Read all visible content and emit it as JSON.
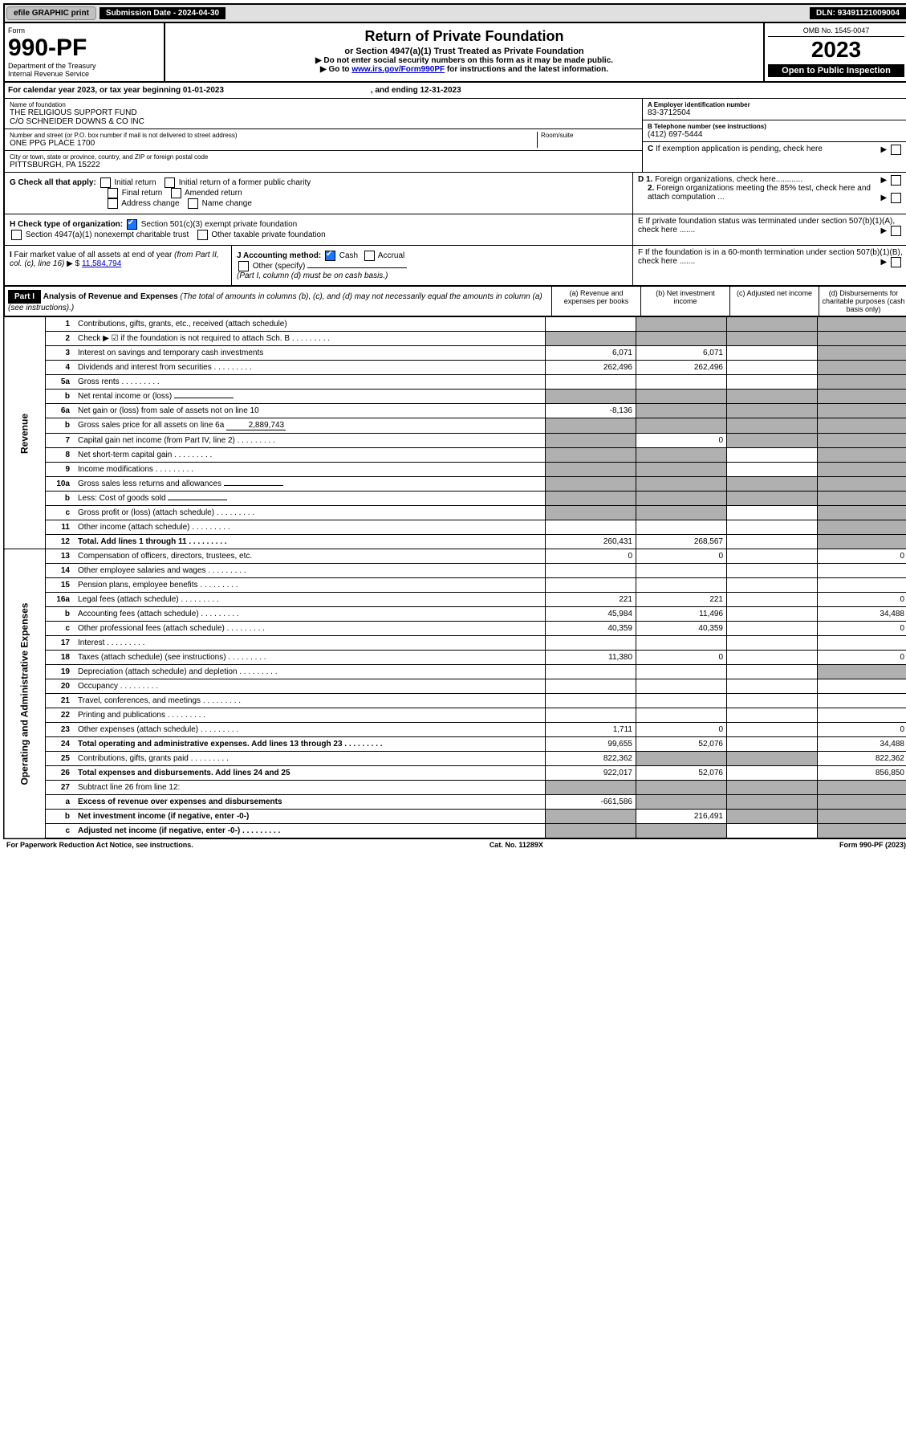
{
  "topbar": {
    "efile": "efile GRAPHIC print",
    "sub_label": "Submission Date - 2024-04-30",
    "dln": "DLN: 93491121009004"
  },
  "header": {
    "form_word": "Form",
    "form_num": "990-PF",
    "dept": "Department of the Treasury",
    "irs": "Internal Revenue Service",
    "title": "Return of Private Foundation",
    "subtitle": "or Section 4947(a)(1) Trust Treated as Private Foundation",
    "instr1": "▶ Do not enter social security numbers on this form as it may be made public.",
    "instr2_pre": "▶ Go to ",
    "instr2_link": "www.irs.gov/Form990PF",
    "instr2_post": " for instructions and the latest information.",
    "omb": "OMB No. 1545-0047",
    "year": "2023",
    "inspect": "Open to Public Inspection"
  },
  "cal": {
    "text_pre": "For calendar year 2023, or tax year beginning ",
    "begin": "01-01-2023",
    "mid": " , and ending ",
    "end": "12-31-2023"
  },
  "entity": {
    "name_label": "Name of foundation",
    "name1": "THE RELIGIOUS SUPPORT FUND",
    "name2": "C/O SCHNEIDER DOWNS & CO INC",
    "addr_label": "Number and street (or P.O. box number if mail is not delivered to street address)",
    "room_label": "Room/suite",
    "addr": "ONE PPG PLACE 1700",
    "city_label": "City or town, state or province, country, and ZIP or foreign postal code",
    "city": "PITTSBURGH, PA  15222",
    "ein_label": "A Employer identification number",
    "ein": "83-3712504",
    "tel_label": "B Telephone number (see instructions)",
    "tel": "(412) 697-5444",
    "c_label": "C If exemption application is pending, check here",
    "d1": "D 1. Foreign organizations, check here............",
    "d2": "2. Foreign organizations meeting the 85% test, check here and attach computation ...",
    "e_label": "E  If private foundation status was terminated under section 507(b)(1)(A), check here .......",
    "f_label": "F  If the foundation is in a 60-month termination under section 507(b)(1)(B), check here .......",
    "g_label": "G Check all that apply:",
    "g_opts": [
      "Initial return",
      "Initial return of a former public charity",
      "Final return",
      "Amended return",
      "Address change",
      "Name change"
    ],
    "h_label": "H Check type of organization:",
    "h1": "Section 501(c)(3) exempt private foundation",
    "h2": "Section 4947(a)(1) nonexempt charitable trust",
    "h3": "Other taxable private foundation",
    "i_label": "I Fair market value of all assets at end of year (from Part II, col. (c), line 16)",
    "i_val": "11,584,794",
    "j_label": "J Accounting method:",
    "j_cash": "Cash",
    "j_accrual": "Accrual",
    "j_other": "Other (specify)",
    "j_note": "(Part I, column (d) must be on cash basis.)"
  },
  "part1": {
    "label": "Part I",
    "title": "Analysis of Revenue and Expenses",
    "title_note": " (The total of amounts in columns (b), (c), and (d) may not necessarily equal the amounts in column (a) (see instructions).)",
    "col_a": "(a) Revenue and expenses per books",
    "col_b": "(b) Net investment income",
    "col_c": "(c) Adjusted net income",
    "col_d": "(d) Disbursements for charitable purposes (cash basis only)"
  },
  "sides": {
    "rev": "Revenue",
    "exp": "Operating and Administrative Expenses"
  },
  "rows": [
    {
      "n": "1",
      "d": "S",
      "a": "",
      "b": "S",
      "c": "S"
    },
    {
      "n": "2",
      "d": "S",
      "a": "S",
      "b": "S",
      "c": "S",
      "dots": true
    },
    {
      "n": "3",
      "d": "S",
      "a": "6,071",
      "b": "6,071",
      "c": ""
    },
    {
      "n": "4",
      "d": "S",
      "a": "262,496",
      "b": "262,496",
      "c": "",
      "dots": true
    },
    {
      "n": "5a",
      "d": "S",
      "a": "",
      "b": "",
      "c": "",
      "dots": true
    },
    {
      "n": "b",
      "d": "S",
      "a": "S",
      "b": "S",
      "c": "S",
      "inline": true
    },
    {
      "n": "6a",
      "d": "S",
      "a": "-8,136",
      "b": "S",
      "c": "S"
    },
    {
      "n": "b",
      "d": "S",
      "a": "S",
      "b": "S",
      "c": "S",
      "inline": true,
      "ival": "2,889,743"
    },
    {
      "n": "7",
      "d": "S",
      "a": "S",
      "b": "0",
      "c": "S",
      "dots": true
    },
    {
      "n": "8",
      "d": "S",
      "a": "S",
      "b": "S",
      "c": "",
      "dots": true
    },
    {
      "n": "9",
      "d": "S",
      "a": "S",
      "b": "S",
      "c": "",
      "dots": true
    },
    {
      "n": "10a",
      "d": "S",
      "a": "S",
      "b": "S",
      "c": "S",
      "inline": true
    },
    {
      "n": "b",
      "d": "S",
      "a": "S",
      "b": "S",
      "c": "S",
      "inline": true,
      "dots": true
    },
    {
      "n": "c",
      "d": "S",
      "a": "S",
      "b": "S",
      "c": "",
      "dots": true
    },
    {
      "n": "11",
      "d": "S",
      "a": "",
      "b": "",
      "c": "",
      "dots": true
    },
    {
      "n": "12",
      "d": "S",
      "a": "260,431",
      "b": "268,567",
      "c": "",
      "bold": true,
      "dots": true
    }
  ],
  "exp_rows": [
    {
      "n": "13",
      "d": "0",
      "a": "0",
      "b": "0",
      "c": ""
    },
    {
      "n": "14",
      "d": "",
      "a": "",
      "b": "",
      "c": "",
      "dots": true
    },
    {
      "n": "15",
      "d": "",
      "a": "",
      "b": "",
      "c": "",
      "dots": true
    },
    {
      "n": "16a",
      "d": "0",
      "a": "221",
      "b": "221",
      "c": "",
      "dots": true
    },
    {
      "n": "b",
      "d": "34,488",
      "a": "45,984",
      "b": "11,496",
      "c": "",
      "dots": true
    },
    {
      "n": "c",
      "d": "0",
      "a": "40,359",
      "b": "40,359",
      "c": "",
      "dots": true
    },
    {
      "n": "17",
      "d": "",
      "a": "",
      "b": "",
      "c": "",
      "dots": true
    },
    {
      "n": "18",
      "d": "0",
      "a": "11,380",
      "b": "0",
      "c": "",
      "dots": true
    },
    {
      "n": "19",
      "d": "S",
      "a": "",
      "b": "",
      "c": "",
      "dots": true
    },
    {
      "n": "20",
      "d": "",
      "a": "",
      "b": "",
      "c": "",
      "dots": true
    },
    {
      "n": "21",
      "d": "",
      "a": "",
      "b": "",
      "c": "",
      "dots": true
    },
    {
      "n": "22",
      "d": "",
      "a": "",
      "b": "",
      "c": "",
      "dots": true
    },
    {
      "n": "23",
      "d": "0",
      "a": "1,711",
      "b": "0",
      "c": "",
      "dots": true
    },
    {
      "n": "24",
      "d": "34,488",
      "a": "99,655",
      "b": "52,076",
      "c": "",
      "bold": true,
      "dots": true
    },
    {
      "n": "25",
      "d": "822,362",
      "a": "822,362",
      "b": "S",
      "c": "S",
      "dots": true
    },
    {
      "n": "26",
      "d": "856,850",
      "a": "922,017",
      "b": "52,076",
      "c": "",
      "bold": true
    },
    {
      "n": "27",
      "d": "S",
      "a": "S",
      "b": "S",
      "c": "S"
    },
    {
      "n": "a",
      "d": "S",
      "a": "-661,586",
      "b": "S",
      "c": "S",
      "bold": true
    },
    {
      "n": "b",
      "d": "S",
      "a": "S",
      "b": "216,491",
      "c": "S",
      "bold": true
    },
    {
      "n": "c",
      "d": "S",
      "a": "S",
      "b": "S",
      "c": "",
      "bold": true,
      "dots": true
    }
  ],
  "footer": {
    "left": "For Paperwork Reduction Act Notice, see instructions.",
    "mid": "Cat. No. 11289X",
    "right": "Form 990-PF (2023)"
  }
}
